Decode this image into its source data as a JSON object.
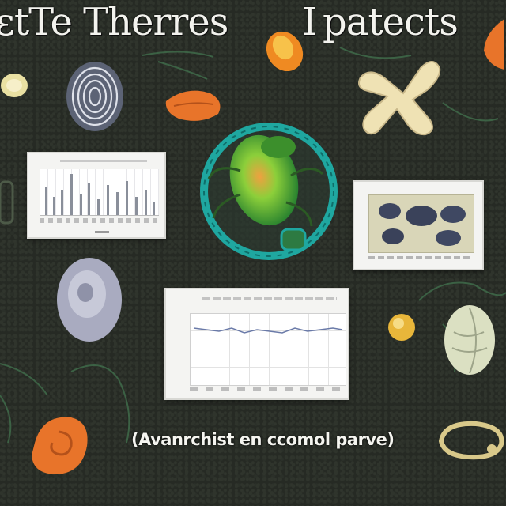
{
  "title": {
    "left": "ɛtTe Therres",
    "right_mark": "I",
    "right": "patects"
  },
  "caption": "(Avanrchist en ccomol parve)",
  "colors": {
    "background": "#262a24",
    "panel": "#f4f4f2",
    "orange": "#e8742a",
    "teal": "#1fa7a0",
    "green": "#4fbf3a",
    "cream": "#efe2b4"
  },
  "decor": [
    "fingerprint-blob-icon",
    "orange-leaf-icon",
    "cream-x-shape-icon",
    "beetle-in-ring-icon",
    "grey-egg-icon",
    "pale-seed-icon",
    "orange-spiral-icon",
    "tan-loop-icon",
    "plant-stem-icon"
  ]
}
